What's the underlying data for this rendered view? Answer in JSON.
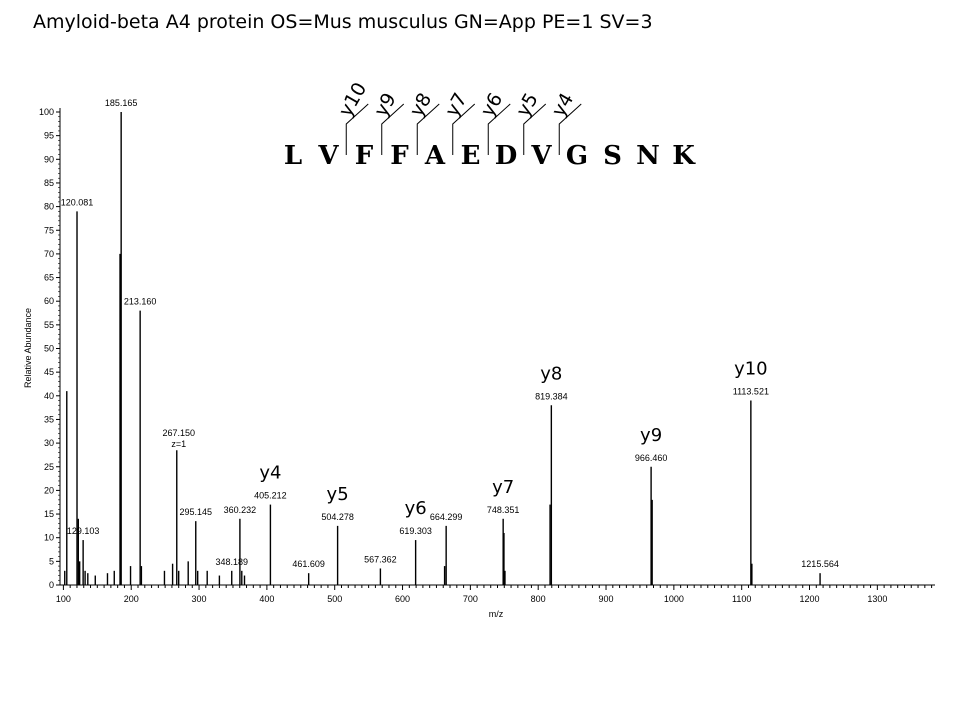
{
  "title": "Amyloid-beta A4 protein OS=Mus musculus GN=App PE=1 SV=3",
  "chart_data": {
    "type": "bar",
    "xlabel": "m/z",
    "ylabel": "Relative Abundance",
    "xlim": [
      95,
      1385
    ],
    "ylim": [
      0,
      100
    ],
    "x_ticks": [
      100,
      200,
      300,
      400,
      500,
      600,
      700,
      800,
      900,
      1000,
      1100,
      1200,
      1300
    ],
    "y_ticks": [
      0,
      5,
      10,
      15,
      20,
      25,
      30,
      35,
      40,
      45,
      50,
      55,
      60,
      65,
      70,
      75,
      80,
      85,
      90,
      95,
      100
    ],
    "peaks": [
      {
        "mz": 102,
        "intensity": 3
      },
      {
        "mz": 105,
        "intensity": 41
      },
      {
        "mz": 120.081,
        "intensity": 79
      },
      {
        "mz": 122,
        "intensity": 14
      },
      {
        "mz": 124,
        "intensity": 5
      },
      {
        "mz": 129.103,
        "intensity": 9.5
      },
      {
        "mz": 132,
        "intensity": 3
      },
      {
        "mz": 136,
        "intensity": 2.5
      },
      {
        "mz": 147,
        "intensity": 2
      },
      {
        "mz": 165,
        "intensity": 2.5
      },
      {
        "mz": 175,
        "intensity": 3
      },
      {
        "mz": 183.5,
        "intensity": 70
      },
      {
        "mz": 185.165,
        "intensity": 100
      },
      {
        "mz": 199,
        "intensity": 4
      },
      {
        "mz": 213.16,
        "intensity": 58
      },
      {
        "mz": 215,
        "intensity": 4
      },
      {
        "mz": 249,
        "intensity": 3
      },
      {
        "mz": 261,
        "intensity": 4.5
      },
      {
        "mz": 267.15,
        "intensity": 28.5
      },
      {
        "mz": 270,
        "intensity": 3
      },
      {
        "mz": 284,
        "intensity": 5
      },
      {
        "mz": 295.145,
        "intensity": 13.5
      },
      {
        "mz": 298,
        "intensity": 3
      },
      {
        "mz": 312,
        "intensity": 3
      },
      {
        "mz": 330,
        "intensity": 2
      },
      {
        "mz": 348.189,
        "intensity": 3
      },
      {
        "mz": 360.232,
        "intensity": 14
      },
      {
        "mz": 363,
        "intensity": 3
      },
      {
        "mz": 367,
        "intensity": 2
      },
      {
        "mz": 405.212,
        "intensity": 17
      },
      {
        "mz": 461.609,
        "intensity": 2.5
      },
      {
        "mz": 504.278,
        "intensity": 12.5
      },
      {
        "mz": 567.362,
        "intensity": 3.5
      },
      {
        "mz": 619.303,
        "intensity": 9.5
      },
      {
        "mz": 662,
        "intensity": 4
      },
      {
        "mz": 664.299,
        "intensity": 12.5
      },
      {
        "mz": 748.351,
        "intensity": 14
      },
      {
        "mz": 749.5,
        "intensity": 11
      },
      {
        "mz": 751,
        "intensity": 3
      },
      {
        "mz": 817.5,
        "intensity": 17
      },
      {
        "mz": 819.384,
        "intensity": 38
      },
      {
        "mz": 966.46,
        "intensity": 25
      },
      {
        "mz": 968,
        "intensity": 18
      },
      {
        "mz": 1113.521,
        "intensity": 39
      },
      {
        "mz": 1115,
        "intensity": 4.5
      },
      {
        "mz": 1215.564,
        "intensity": 2.5
      }
    ],
    "peak_labels": [
      {
        "mz": 120.081,
        "text": "120.081"
      },
      {
        "mz": 129.103,
        "text": "129.103"
      },
      {
        "mz": 185.165,
        "text": "185.165"
      },
      {
        "mz": 213.16,
        "text": "213.160"
      },
      {
        "mz": 267.15,
        "text": "267.150",
        "note": "z=1"
      },
      {
        "mz": 295.145,
        "text": "295.145"
      },
      {
        "mz": 348.189,
        "text": "348.189"
      },
      {
        "mz": 360.232,
        "text": "360.232"
      },
      {
        "mz": 405.212,
        "text": "405.212"
      },
      {
        "mz": 461.609,
        "text": "461.609"
      },
      {
        "mz": 504.278,
        "text": "504.278"
      },
      {
        "mz": 567.362,
        "text": "567.362"
      },
      {
        "mz": 619.303,
        "text": "619.303"
      },
      {
        "mz": 664.299,
        "text": "664.299"
      },
      {
        "mz": 748.351,
        "text": "748.351"
      },
      {
        "mz": 819.384,
        "text": "819.384"
      },
      {
        "mz": 966.46,
        "text": "966.460"
      },
      {
        "mz": 1113.521,
        "text": "1113.521"
      },
      {
        "mz": 1215.564,
        "text": "1215.564"
      }
    ],
    "ion_labels": [
      {
        "mz": 405.212,
        "text": "y4"
      },
      {
        "mz": 504.278,
        "text": "y5"
      },
      {
        "mz": 619.303,
        "text": "y6"
      },
      {
        "mz": 748.351,
        "text": "y7"
      },
      {
        "mz": 819.384,
        "text": "y8"
      },
      {
        "mz": 966.46,
        "text": "y9"
      },
      {
        "mz": 1113.521,
        "text": "y10"
      }
    ],
    "sequence": [
      "L",
      "V",
      "F",
      "F",
      "A",
      "E",
      "D",
      "V",
      "G",
      "S",
      "N",
      "K"
    ],
    "fragment_markers": [
      "y10",
      "y9",
      "y8",
      "y7",
      "y6",
      "y5",
      "y4"
    ]
  }
}
